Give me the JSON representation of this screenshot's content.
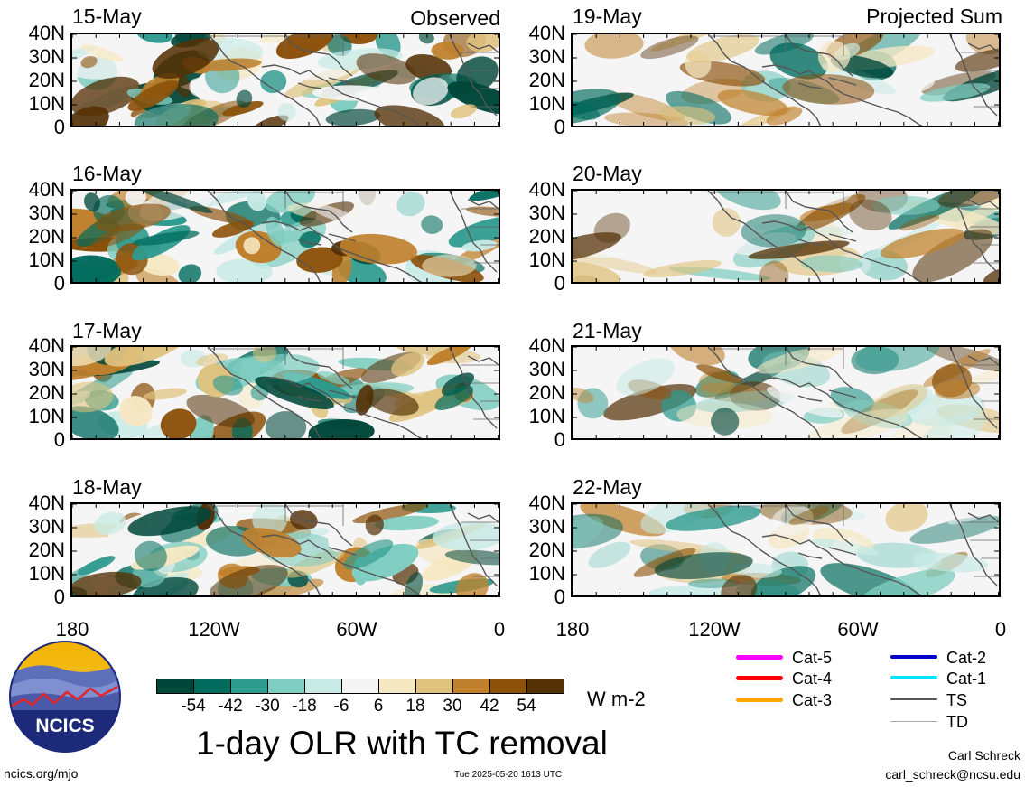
{
  "header": {
    "left_label": "Observed",
    "right_label": "Projected Sum"
  },
  "panels_left": [
    {
      "date": "15-May"
    },
    {
      "date": "16-May"
    },
    {
      "date": "17-May"
    },
    {
      "date": "18-May"
    }
  ],
  "panels_right": [
    {
      "date": "19-May"
    },
    {
      "date": "20-May"
    },
    {
      "date": "21-May"
    },
    {
      "date": "22-May"
    }
  ],
  "y_ticks": [
    "40N",
    "30N",
    "20N",
    "10N",
    "0"
  ],
  "x_ticks": [
    "180",
    "120W",
    "60W",
    "0"
  ],
  "colorbar": {
    "labels": [
      "-54",
      "-42",
      "-30",
      "-18",
      "-6",
      "6",
      "18",
      "30",
      "42",
      "54"
    ],
    "colors": [
      "#00473a",
      "#006b5d",
      "#2e9a8e",
      "#80cdc1",
      "#c7eae5",
      "#f5f5f5",
      "#f6e8c3",
      "#dfc27d",
      "#bf812d",
      "#8c510a",
      "#543005"
    ],
    "units": "W m-2"
  },
  "legend": [
    {
      "label": "Cat-5",
      "color": "#ff00ff"
    },
    {
      "label": "Cat-4",
      "color": "#ff0000"
    },
    {
      "label": "Cat-3",
      "color": "#ffa500"
    },
    {
      "label": "Cat-2",
      "color": "#0000cc"
    },
    {
      "label": "Cat-1",
      "color": "#00e5ff"
    },
    {
      "label": "TS",
      "color": "#555555"
    },
    {
      "label": "TD",
      "color": "#aaaaaa"
    }
  ],
  "title": "1-day OLR with TC removal",
  "logo": {
    "text": "NCICS"
  },
  "footer": {
    "url": "ncics.org/mjo",
    "timestamp": "Tue 2025-05-20 1613 UTC",
    "author": "Carl Schreck",
    "email": "carl_schreck@ncsu.edu"
  }
}
